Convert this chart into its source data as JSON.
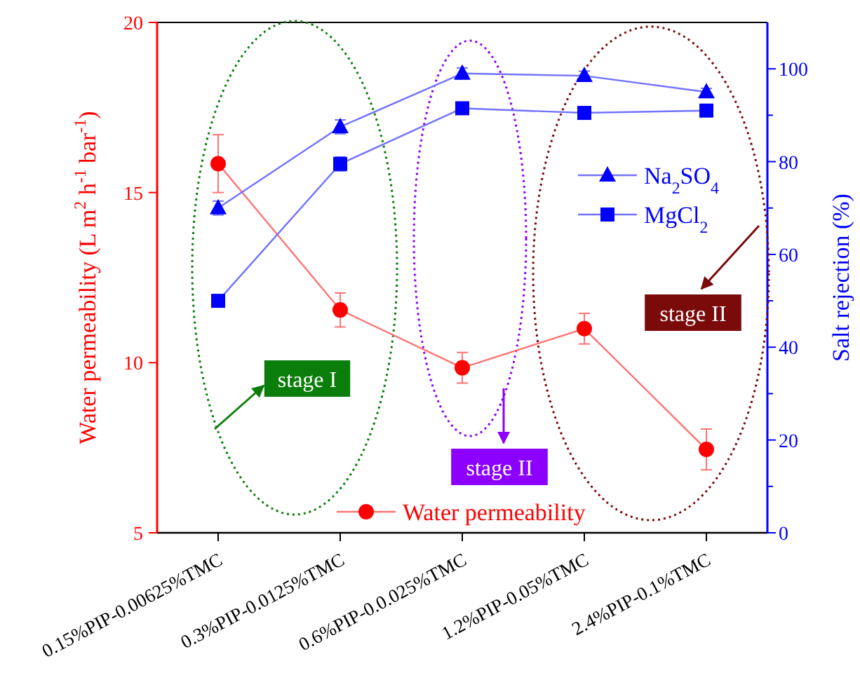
{
  "chart_data": {
    "type": "line",
    "categories": [
      "0.15%PIP-0.00625%TMC",
      "0.3%PIP-0.0125%TMC",
      "0.6%PIP-0.0.025%TMC",
      "1.2%PIP-0.05%TMC",
      "2.4%PIP-0.1%TMC"
    ],
    "ylabel": "Water permeability (L m$^{2}$ h$^{-1}$ bar$^{-1}$)",
    "y2label": "Salt rejection (%)",
    "ylim": [
      5,
      20
    ],
    "yticks": [
      5,
      10,
      15,
      20
    ],
    "y2lim": [
      0,
      110
    ],
    "y2ticks": [
      0,
      {
        "value": 10,
        "label": null
      },
      20,
      {
        "value": 30,
        "label": null
      },
      40,
      {
        "value": 50,
        "label": null
      },
      60,
      {
        "value": 70,
        "label": null
      },
      80,
      {
        "value": 90,
        "label": null
      },
      100
    ],
    "series": [
      {
        "name": "Water permeability",
        "color": "#ff0000",
        "marker": "circle",
        "values": [
          15.85,
          11.55,
          9.85,
          11.0,
          7.45
        ],
        "errors": [
          0.85,
          0.5,
          0.45,
          0.45,
          0.6
        ]
      },
      {
        "name": "Na$_{2}$SO$_{4}$",
        "color": "#0000ff",
        "axis": "y2",
        "marker": "triangle",
        "values": [
          70,
          87.5,
          99,
          98.5,
          95
        ],
        "errors": [
          1.5,
          1.5,
          1.2,
          1,
          0.8
        ]
      },
      {
        "name": "MgCl$_{2}$",
        "color": "#0000ff",
        "axis": "y2",
        "marker": "square",
        "values": [
          50,
          79.5,
          91.5,
          90.5,
          91
        ],
        "errors": [
          1,
          1.5,
          1,
          0.8,
          1
        ]
      }
    ],
    "legend": "right",
    "line_style": "solid",
    "grid": false,
    "annotations": [
      "stage I",
      "stage II",
      "stage II"
    ]
  }
}
